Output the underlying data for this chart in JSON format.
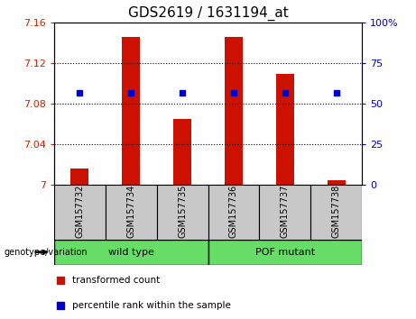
{
  "title": "GDS2619 / 1631194_at",
  "samples": [
    "GSM157732",
    "GSM157734",
    "GSM157735",
    "GSM157736",
    "GSM157737",
    "GSM157738"
  ],
  "bar_values": [
    7.016,
    7.146,
    7.065,
    7.146,
    7.109,
    7.005
  ],
  "percentile_values": [
    7.091,
    7.091,
    7.091,
    7.091,
    7.091,
    7.091
  ],
  "bar_baseline": 7.0,
  "ylim_left": [
    7.0,
    7.16
  ],
  "ylim_right": [
    0,
    100
  ],
  "yticks_left": [
    7.0,
    7.04,
    7.08,
    7.12,
    7.16
  ],
  "yticks_right": [
    0,
    25,
    50,
    75,
    100
  ],
  "ytick_labels_left": [
    "7",
    "7.04",
    "7.08",
    "7.12",
    "7.16"
  ],
  "ytick_labels_right": [
    "0",
    "25",
    "50",
    "75",
    "100%"
  ],
  "dotted_lines": [
    7.04,
    7.08,
    7.12
  ],
  "bar_color": "#cc1100",
  "marker_color": "#0000cc",
  "sample_box_color": "#c8c8c8",
  "wt_color": "#66dd66",
  "pof_color": "#66dd66",
  "legend_items": [
    {
      "label": "transformed count",
      "color": "#cc1100"
    },
    {
      "label": "percentile rank within the sample",
      "color": "#0000cc"
    }
  ],
  "plot_bg_color": "#ffffff",
  "title_fontsize": 11,
  "axis_label_color_left": "#cc2200",
  "axis_label_color_right": "#0000cc",
  "bar_width": 0.35
}
